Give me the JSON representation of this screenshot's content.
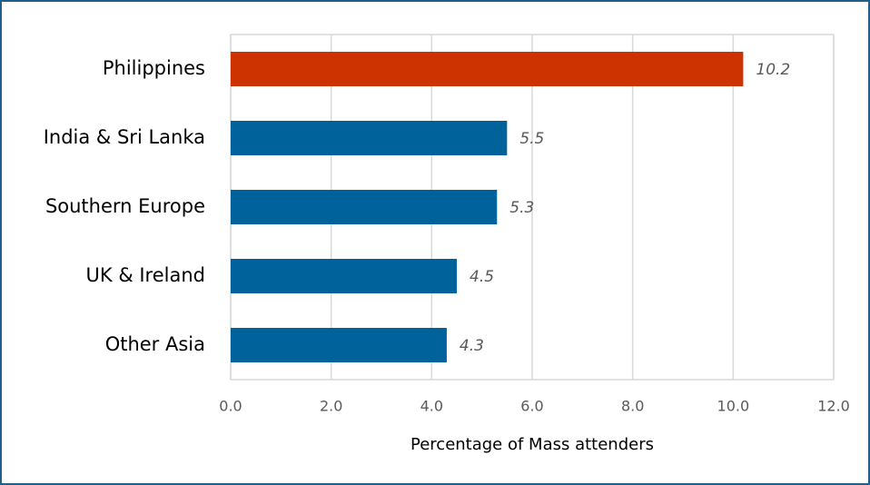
{
  "chart_data": {
    "type": "barh",
    "categories": [
      "Philippines",
      "India & Sri Lanka",
      "Southern Europe",
      "UK & Ireland",
      "Other Asia"
    ],
    "values": [
      10.2,
      5.5,
      5.3,
      4.5,
      4.3
    ],
    "colors": [
      "#cc3300",
      "#00629b",
      "#00629b",
      "#00629b",
      "#00629b"
    ],
    "xlabel": "Percentage of Mass attenders",
    "xlim": [
      0,
      12
    ],
    "xticks": [
      {
        "value": 0,
        "label": "0.0"
      },
      {
        "value": 2,
        "label": "2.0"
      },
      {
        "value": 4,
        "label": "4.0"
      },
      {
        "value": 6,
        "label": "6.0"
      },
      {
        "value": 8,
        "label": "8.0"
      },
      {
        "value": 10,
        "label": "10.0"
      },
      {
        "value": 12,
        "label": "12.0"
      }
    ],
    "grid": true
  }
}
